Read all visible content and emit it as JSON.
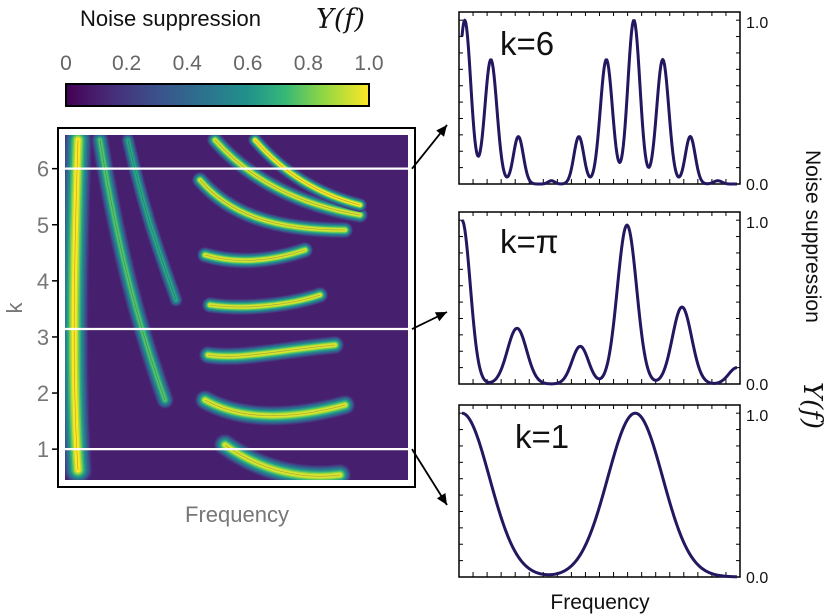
{
  "chart_data": [
    {
      "type": "heatmap",
      "title": "Noise suppression",
      "title_math": "Υ(f)",
      "xlabel": "Frequency",
      "ylabel": "k",
      "ylim": [
        0.45,
        6.6
      ],
      "yticks": [
        "1",
        "2",
        "3",
        "4",
        "5",
        "6"
      ],
      "colorbar": {
        "ticks": [
          "0",
          "0.2",
          "0.4",
          "0.6",
          "0.8",
          "1.0"
        ],
        "range": [
          0,
          1
        ],
        "colormap": "viridis"
      },
      "contours": true,
      "highlighted_rows_k": [
        1,
        3.1416,
        6
      ]
    },
    {
      "type": "line",
      "label": "k=6",
      "k": 6,
      "xlabel": "",
      "ylabel": "Noise suppression Υ(f)",
      "ytick_labels": [
        "0.0",
        "1.0"
      ],
      "ylim": [
        0,
        1.05
      ],
      "color": "#23175f"
    },
    {
      "type": "line",
      "label": "k=π",
      "k": 3.14159,
      "xlabel": "",
      "ylabel": "Noise suppression Υ(f)",
      "ytick_labels": [
        "0.0",
        "1.0"
      ],
      "ylim": [
        0,
        1.05
      ],
      "color": "#23175f"
    },
    {
      "type": "line",
      "label": "k=1",
      "k": 1,
      "xlabel": "Frequency",
      "ylabel": "Noise suppression Υ(f)",
      "ytick_labels": [
        "0.0",
        "1.0"
      ],
      "ylim": [
        0,
        1.05
      ],
      "color": "#23175f"
    }
  ],
  "shared_ylabel_text": "Noise suppression",
  "shared_ylabel_math": "Υ(f)"
}
